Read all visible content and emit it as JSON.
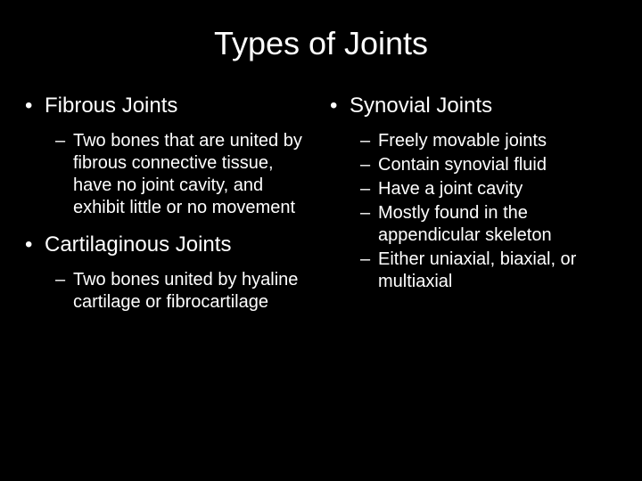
{
  "title": "Types of Joints",
  "colors": {
    "background": "#000000",
    "text": "#ffffff"
  },
  "typography": {
    "title_fontsize": 36,
    "l1_fontsize": 24,
    "l2_fontsize": 20,
    "font_family": "Arial"
  },
  "left": {
    "items": [
      {
        "label": "Fibrous Joints",
        "sub": [
          "Two bones that are united by fibrous connective tissue, have no joint cavity, and exhibit little or no movement"
        ]
      },
      {
        "label": "Cartilaginous Joints",
        "sub": [
          "Two bones united by hyaline cartilage or fibrocartilage"
        ]
      }
    ]
  },
  "right": {
    "items": [
      {
        "label": "Synovial Joints",
        "sub": [
          "Freely movable joints",
          "Contain synovial fluid",
          "Have a joint cavity",
          "Mostly found in the appendicular skeleton",
          "Either uniaxial, biaxial, or multiaxial"
        ]
      }
    ]
  },
  "markers": {
    "l1": "•",
    "l2": "–"
  }
}
